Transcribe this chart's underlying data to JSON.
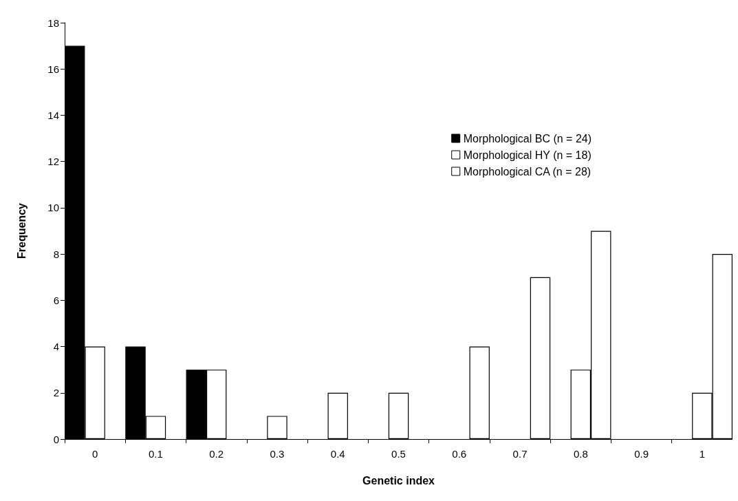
{
  "chart_data": {
    "type": "bar",
    "xlabel": "Genetic index",
    "ylabel": "Frequency",
    "categories": [
      "0",
      "0.1",
      "0.2",
      "0.3",
      "0.4",
      "0.5",
      "0.6",
      "0.7",
      "0.8",
      "0.9",
      "1"
    ],
    "series": [
      {
        "name": "Morphological BC (n = 24)",
        "color": "#000000",
        "values": [
          17,
          4,
          3,
          0,
          0,
          0,
          0,
          0,
          0,
          0,
          0
        ]
      },
      {
        "name": "Morphological HY (n = 18)",
        "color": "#ffffff",
        "values": [
          4,
          1,
          3,
          1,
          2,
          2,
          0,
          0,
          3,
          0,
          2
        ]
      },
      {
        "name": "Morphological CA (n = 28)",
        "color": "#ffffff",
        "values": [
          0,
          0,
          0,
          0,
          0,
          0,
          4,
          7,
          9,
          0,
          8
        ]
      }
    ],
    "ylim": [
      0,
      18
    ],
    "yticks": [
      0,
      2,
      4,
      6,
      8,
      10,
      12,
      14,
      16,
      18
    ],
    "grid": false,
    "legend": "top right"
  }
}
